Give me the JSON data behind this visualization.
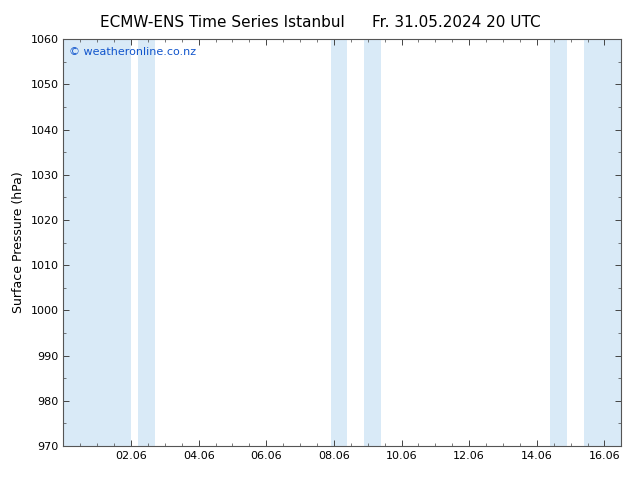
{
  "title_left": "ECMW-ENS Time Series Istanbul",
  "title_right": "Fr. 31.05.2024 20 UTC",
  "ylabel": "Surface Pressure (hPa)",
  "ylim": [
    970,
    1060
  ],
  "yticks": [
    970,
    980,
    990,
    1000,
    1010,
    1020,
    1030,
    1040,
    1050,
    1060
  ],
  "xlim": [
    0,
    16.5
  ],
  "xticks": [
    2,
    4,
    6,
    8,
    10,
    12,
    14,
    16
  ],
  "xticklabels": [
    "02.06",
    "04.06",
    "06.06",
    "08.06",
    "10.06",
    "12.06",
    "14.06",
    "16.06"
  ],
  "bg_color": "#ffffff",
  "plot_bg_color": "#ffffff",
  "shaded_bands": [
    {
      "x_start": 0.0,
      "x_end": 2.0,
      "color": "#daeaf7"
    },
    {
      "x_start": 2.0,
      "x_end": 2.5,
      "color": "#daeaf7"
    },
    {
      "x_start": 8.0,
      "x_end": 9.0,
      "color": "#daeaf7"
    },
    {
      "x_start": 14.0,
      "x_end": 16.5,
      "color": "#daeaf7"
    }
  ],
  "watermark_text": "© weatheronline.co.nz",
  "watermark_color": "#1155cc",
  "watermark_fontsize": 8,
  "title_fontsize": 11,
  "tick_fontsize": 8,
  "ylabel_fontsize": 9,
  "border_color": "#555555"
}
